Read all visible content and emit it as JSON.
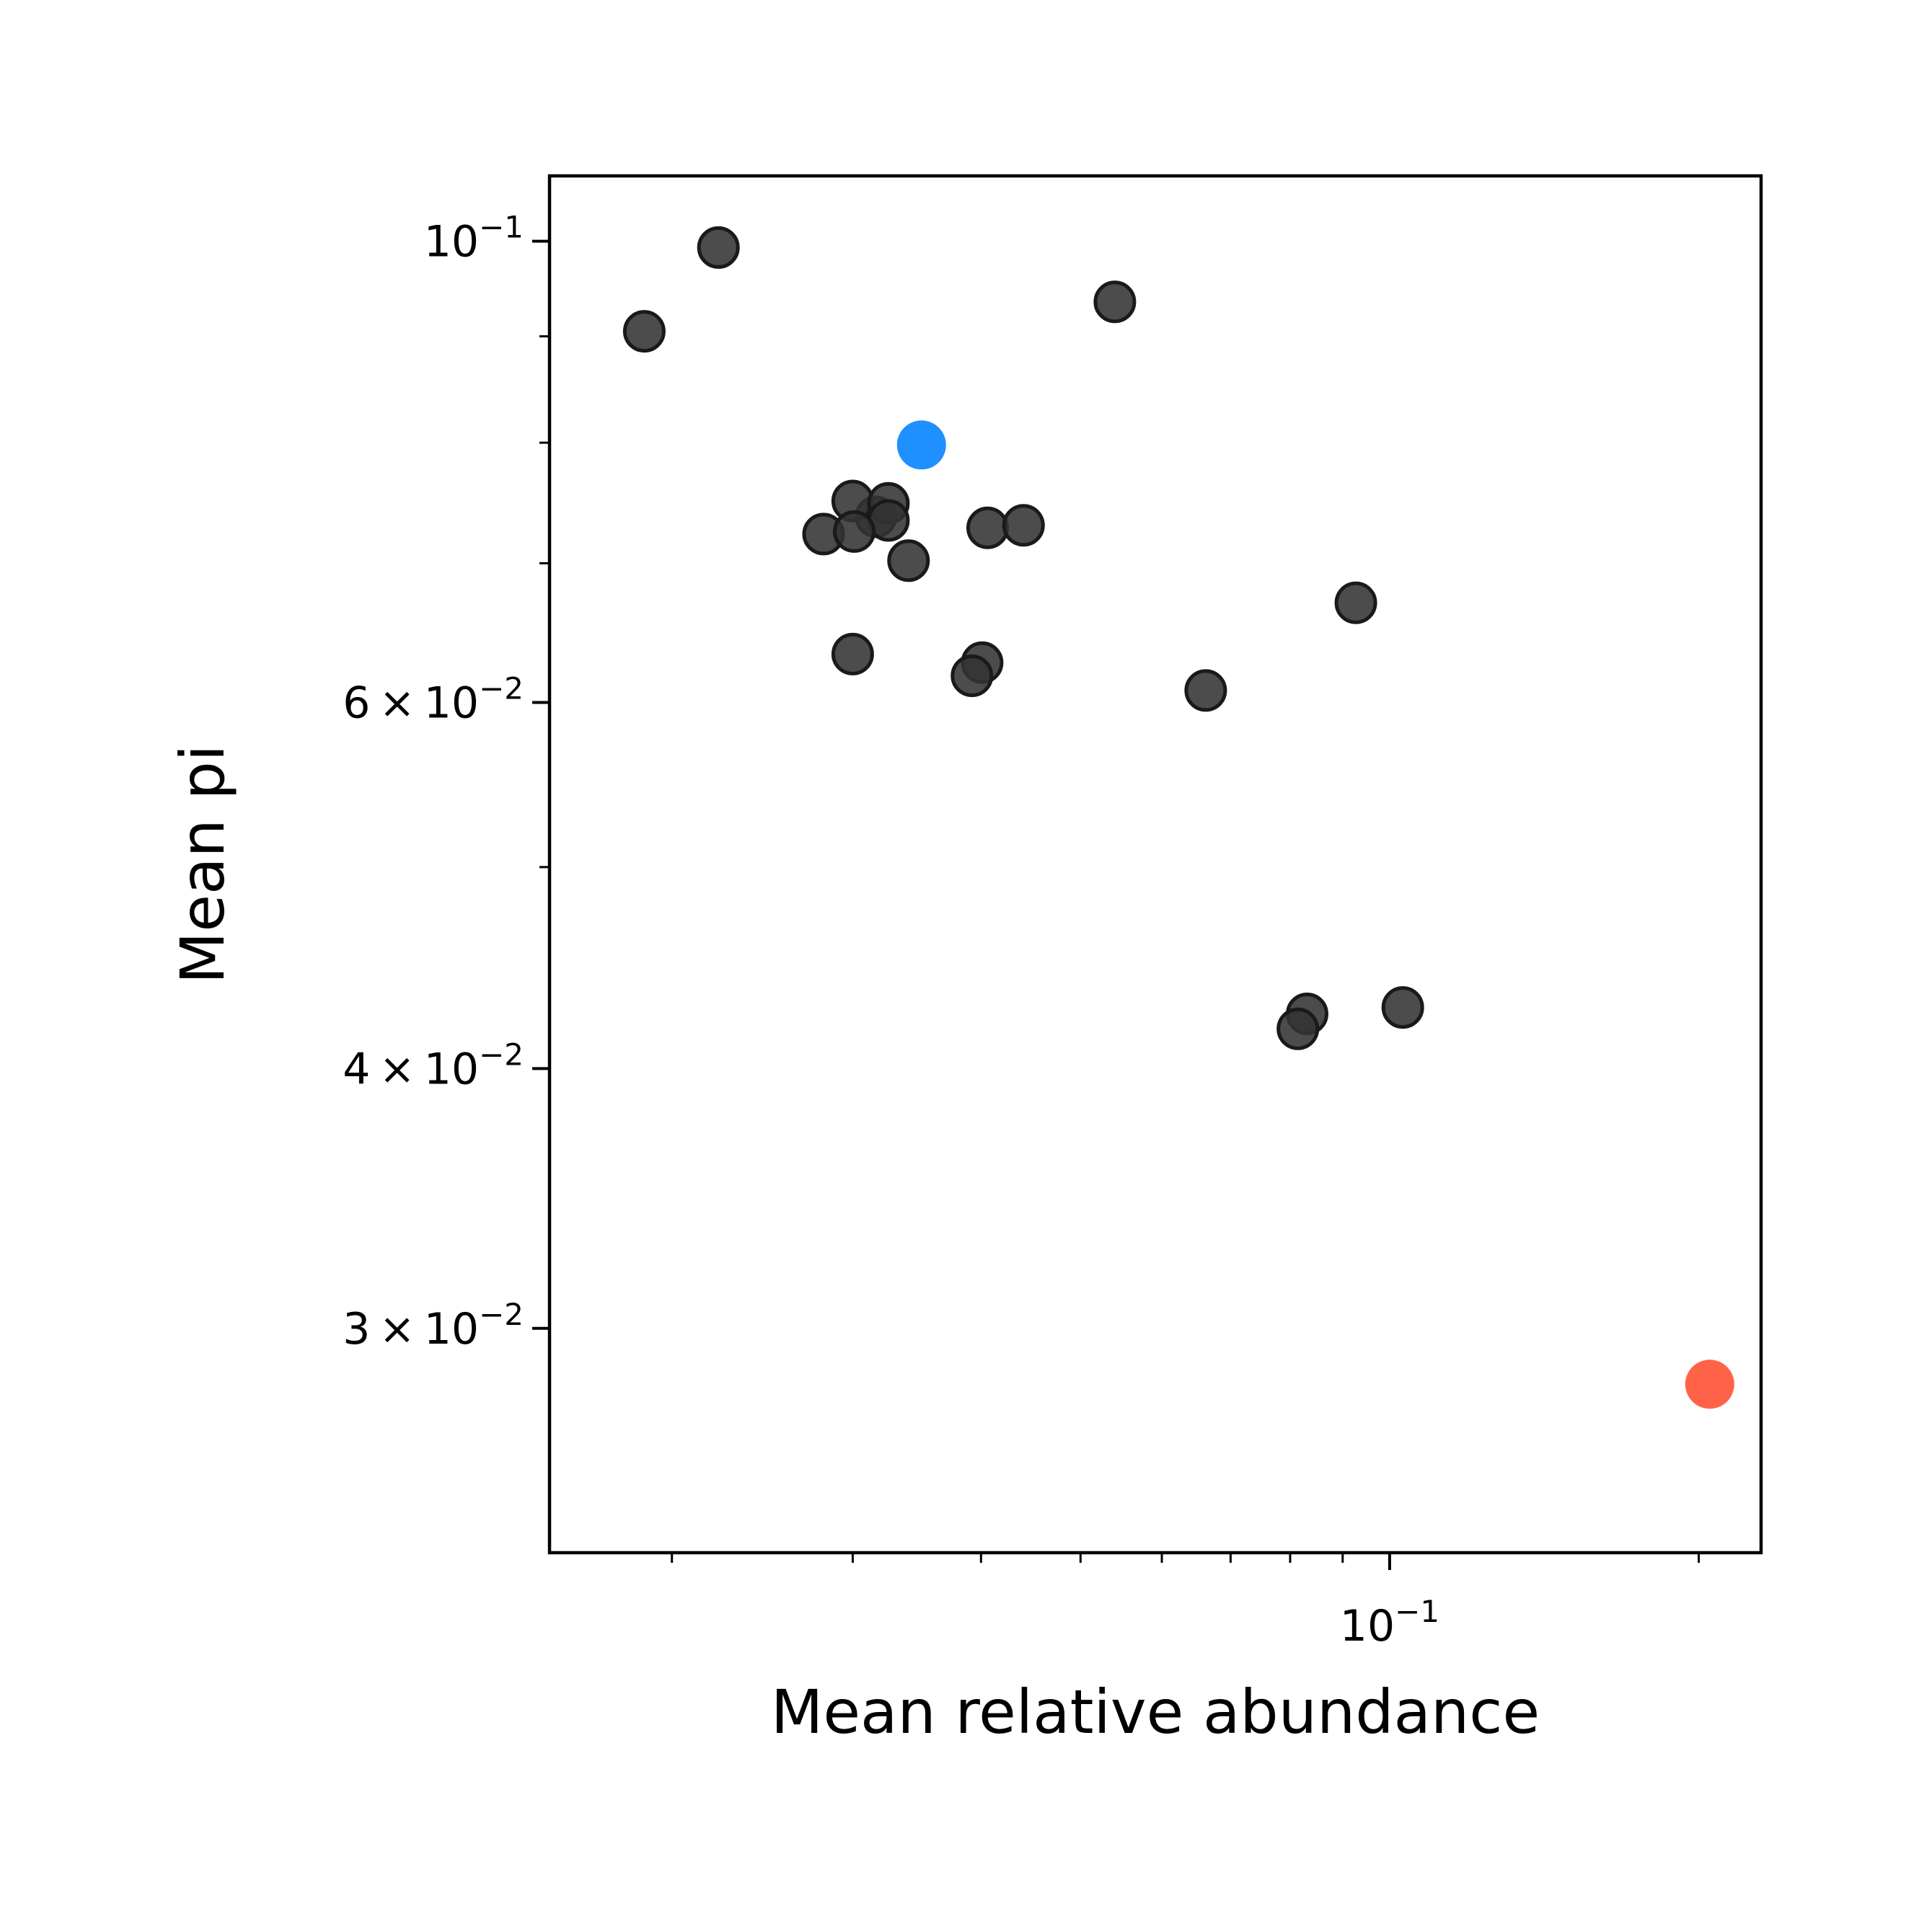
{
  "chart_data": {
    "type": "scatter",
    "title": "",
    "xlabel": "Mean relative abundance",
    "ylabel": "Mean pi",
    "xscale": "log",
    "yscale": "log",
    "xlim": [
      0.0152,
      0.23
    ],
    "ylim": [
      0.0234,
      0.1075
    ],
    "grid": false,
    "legend": "none",
    "x_tick_labels": [
      {
        "value": 0.1,
        "mantissa": "",
        "base": "10",
        "exp": "−1"
      }
    ],
    "y_tick_labels": [
      {
        "value": 0.1,
        "mantissa": "",
        "base": "10",
        "exp": "−1"
      },
      {
        "value": 0.06,
        "mantissa": "6",
        "base": "10",
        "exp": "−2"
      },
      {
        "value": 0.04,
        "mantissa": "4",
        "base": "10",
        "exp": "−2"
      },
      {
        "value": 0.03,
        "mantissa": "3",
        "base": "10",
        "exp": "−2"
      }
    ],
    "x_minor_ticks": [
      0.02,
      0.03,
      0.04,
      0.05,
      0.06,
      0.07,
      0.08,
      0.09,
      0.2
    ],
    "y_minor_ticks": [
      0.05,
      0.07,
      0.08,
      0.09
    ],
    "colors": {
      "default": "#333333",
      "default_edge": "#1a1a1a",
      "highlight_blue": "#1e90ff",
      "highlight_red": "#ff6347"
    },
    "series": [
      {
        "color": "#333333",
        "points": [
          {
            "x": 0.0188,
            "y": 0.0905
          },
          {
            "x": 0.0222,
            "y": 0.0993
          },
          {
            "x": 0.054,
            "y": 0.0935
          },
          {
            "x": 0.0316,
            "y": 0.0737
          },
          {
            "x": 0.03,
            "y": 0.075
          },
          {
            "x": 0.0325,
            "y": 0.0748
          },
          {
            "x": 0.0281,
            "y": 0.0723
          },
          {
            "x": 0.0325,
            "y": 0.0734
          },
          {
            "x": 0.0301,
            "y": 0.0725
          },
          {
            "x": 0.0406,
            "y": 0.0728
          },
          {
            "x": 0.044,
            "y": 0.073
          },
          {
            "x": 0.034,
            "y": 0.0702
          },
          {
            "x": 0.0927,
            "y": 0.067
          },
          {
            "x": 0.03,
            "y": 0.0633
          },
          {
            "x": 0.0401,
            "y": 0.0627
          },
          {
            "x": 0.0392,
            "y": 0.0618
          },
          {
            "x": 0.0662,
            "y": 0.0608
          },
          {
            "x": 0.0831,
            "y": 0.0425
          },
          {
            "x": 0.0814,
            "y": 0.0418
          },
          {
            "x": 0.103,
            "y": 0.0428
          }
        ]
      },
      {
        "color": "#1e90ff",
        "points": [
          {
            "x": 0.035,
            "y": 0.0798
          }
        ]
      },
      {
        "color": "#ff6347",
        "points": [
          {
            "x": 0.205,
            "y": 0.0282
          }
        ]
      }
    ]
  }
}
